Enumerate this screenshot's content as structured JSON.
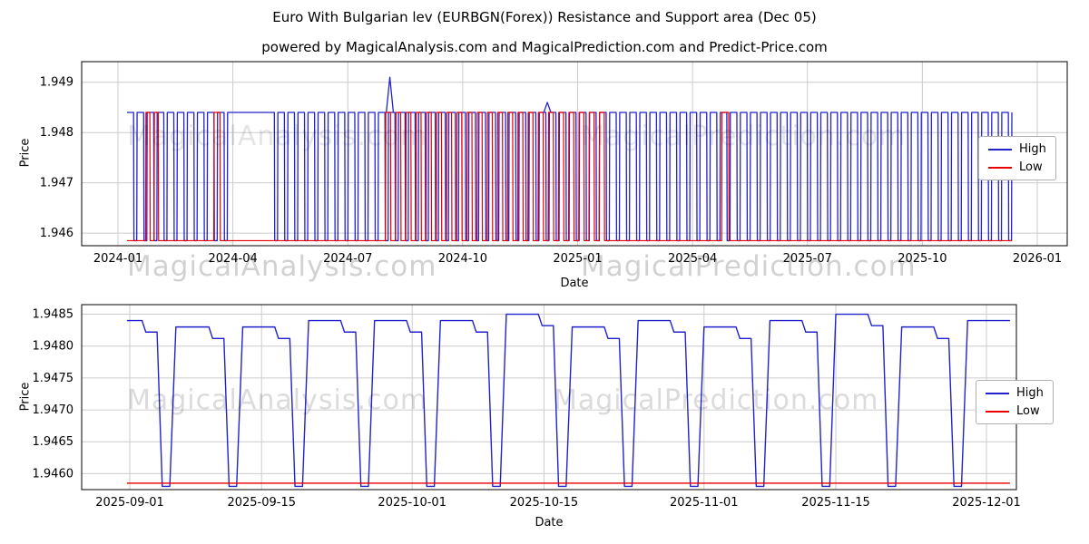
{
  "title": "Euro With Bulgarian lev (EURBGN(Forex)) Resistance and Support area (Dec 05)",
  "subtitle": "powered by MagicalAnalysis.com and MagicalPrediction.com and Predict-Price.com",
  "colors": {
    "high": "#2222cc",
    "low": "#e60000",
    "grid": "#cccccc",
    "spine": "#000000"
  },
  "legend": {
    "high": "High",
    "low": "Low"
  },
  "watermarks": {
    "analysis": "MagicalAnalysis.com",
    "prediction": "MagicalPrediction.com"
  },
  "chart_data": [
    {
      "type": "line",
      "title": "",
      "xlabel": "Date",
      "ylabel": "Price",
      "x_ticks": [
        "2024-01",
        "2024-04",
        "2024-07",
        "2024-10",
        "2025-01",
        "2025-04",
        "2025-07",
        "2025-10",
        "2026-01"
      ],
      "y_tick_values": [
        1.946,
        1.947,
        1.948,
        1.949
      ],
      "y_tick_labels": [
        "1.946",
        "1.947",
        "1.948",
        "1.949"
      ],
      "ylim": [
        1.94575,
        1.94941
      ],
      "x_data_range": [
        "2024-01-08",
        "2025-11-22"
      ],
      "grid": true,
      "legend_position": "right",
      "series": [
        {
          "name": "High",
          "color": "#2222cc",
          "pattern": "square-wave",
          "high": 1.9484,
          "low": 1.94585,
          "cycles": 88,
          "duty_low": 0.35,
          "flat_high_segments": [
            [
              0.108,
              0.158
            ]
          ],
          "spikes": [
            {
              "frac": 0.297,
              "value": 1.9491
            },
            {
              "frac": 0.475,
              "value": 1.9486
            }
          ]
        },
        {
          "name": "Low",
          "color": "#e60000",
          "pattern": "flat-with-bursts",
          "base": 1.94585,
          "burst_high": 1.9484,
          "burst_segments": [
            [
              0.021,
              0.04
            ],
            [
              0.098,
              0.112
            ],
            [
              0.292,
              0.545
            ],
            [
              0.672,
              0.688
            ]
          ]
        }
      ]
    },
    {
      "type": "line",
      "title": "",
      "xlabel": "Date",
      "ylabel": "Price",
      "x_ticks": [
        "2025-09-01",
        "2025-09-15",
        "2025-10-01",
        "2025-10-15",
        "2025-11-01",
        "2025-11-15",
        "2025-12-01"
      ],
      "x_tick_days": [
        0,
        14,
        30,
        44,
        61,
        75,
        91
      ],
      "y_tick_values": [
        1.946,
        1.9465,
        1.947,
        1.9475,
        1.948,
        1.9485
      ],
      "y_tick_labels": [
        "1.9460",
        "1.9465",
        "1.9470",
        "1.9475",
        "1.9480",
        "1.9485"
      ],
      "ylim": [
        1.94575,
        1.94865
      ],
      "grid": true,
      "legend_position": "right",
      "series": [
        {
          "name": "High",
          "color": "#2222cc",
          "pattern": "plateau-with-dips",
          "start_day": -0.3,
          "end_day": 93.5,
          "dip_value": 1.9458,
          "pre_dip_step": 0.00018,
          "dip_days": [
            3.9,
            11,
            18,
            25,
            32,
            39,
            46,
            53,
            60,
            67,
            74,
            81,
            88
          ],
          "plateau_values": [
            1.9484,
            1.9483,
            1.9483,
            1.9484,
            1.9484,
            1.9484,
            1.9485,
            1.9483,
            1.9484,
            1.9483,
            1.9484,
            1.9485,
            1.9483,
            1.9484
          ]
        },
        {
          "name": "Low",
          "color": "#e60000",
          "pattern": "flat",
          "value": 1.94585,
          "start_day": -0.3,
          "end_day": 93.5
        }
      ]
    }
  ]
}
